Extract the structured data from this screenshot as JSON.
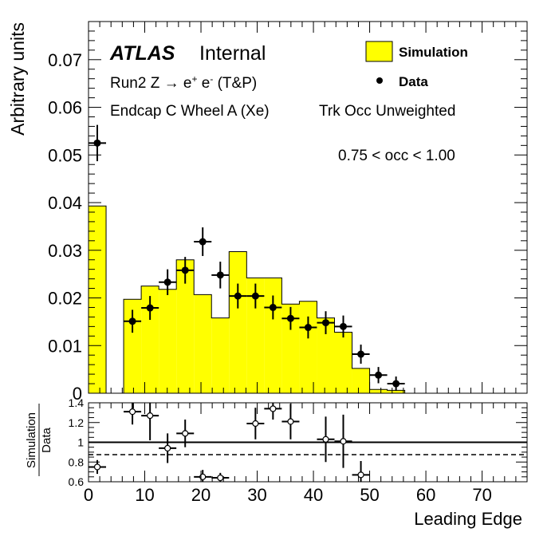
{
  "chart_data": [
    {
      "type": "bar",
      "panel": "main",
      "ylabel": "Arbitrary units",
      "xlim": [
        0,
        78
      ],
      "ylim": [
        0,
        0.078
      ],
      "y_ticks": [
        {
          "v": 0,
          "label": "0"
        },
        {
          "v": 0.01,
          "label": "0.01"
        },
        {
          "v": 0.02,
          "label": "0.02"
        },
        {
          "v": 0.03,
          "label": "0.03"
        },
        {
          "v": 0.04,
          "label": "0.04"
        },
        {
          "v": 0.05,
          "label": "0.05"
        },
        {
          "v": 0.06,
          "label": "0.06"
        },
        {
          "v": 0.07,
          "label": "0.07"
        }
      ],
      "annotations": {
        "atlas": "ATLAS",
        "internal": "Internal",
        "process_prefix": "Run2 Z",
        "process_arrow": "→",
        "process_eplus": "e",
        "process_eplus_sup": "+",
        "process_eminus": "e",
        "process_eminus_sup": "-",
        "process_suffix": "(T&P)",
        "region": "Endcap C Wheel A (Xe)",
        "weighting": "Trk Occ Unweighted",
        "occ_range": "0.75 < occ < 1.00"
      },
      "legend": {
        "placement": "top-right",
        "simulation": "Simulation",
        "data": "Data"
      },
      "colors": {
        "simulation_fill": "#ffff00",
        "simulation_line": "#000000",
        "data": "#000000"
      },
      "simulation_bins": [
        {
          "x0": 0,
          "x1": 3.125,
          "y": 0.0393
        },
        {
          "x0": 3.125,
          "x1": 6.25,
          "y": 0.0
        },
        {
          "x0": 6.25,
          "x1": 9.375,
          "y": 0.0197
        },
        {
          "x0": 9.375,
          "x1": 12.5,
          "y": 0.0225
        },
        {
          "x0": 12.5,
          "x1": 15.625,
          "y": 0.0218
        },
        {
          "x0": 15.625,
          "x1": 18.75,
          "y": 0.028
        },
        {
          "x0": 18.75,
          "x1": 21.875,
          "y": 0.0207
        },
        {
          "x0": 21.875,
          "x1": 25.0,
          "y": 0.0158
        },
        {
          "x0": 25.0,
          "x1": 28.125,
          "y": 0.0297
        },
        {
          "x0": 28.125,
          "x1": 31.25,
          "y": 0.0242
        },
        {
          "x0": 31.25,
          "x1": 34.375,
          "y": 0.0242
        },
        {
          "x0": 34.375,
          "x1": 37.5,
          "y": 0.0187
        },
        {
          "x0": 37.5,
          "x1": 40.625,
          "y": 0.0193
        },
        {
          "x0": 40.625,
          "x1": 43.75,
          "y": 0.0158
        },
        {
          "x0": 43.75,
          "x1": 46.875,
          "y": 0.0128
        },
        {
          "x0": 46.875,
          "x1": 50.0,
          "y": 0.0052
        },
        {
          "x0": 50.0,
          "x1": 53.125,
          "y": 0.0008
        },
        {
          "x0": 53.125,
          "x1": 56.25,
          "y": 0.0006
        }
      ],
      "data_points": [
        {
          "x": 1.56,
          "y": 0.0525,
          "yerr": 0.0028
        },
        {
          "x": 7.81,
          "y": 0.0151,
          "yerr": 0.0014
        },
        {
          "x": 10.94,
          "y": 0.0179,
          "yerr": 0.0015
        },
        {
          "x": 14.06,
          "y": 0.0233,
          "yerr": 0.0017
        },
        {
          "x": 17.19,
          "y": 0.0258,
          "yerr": 0.0018
        },
        {
          "x": 20.31,
          "y": 0.0318,
          "yerr": 0.002
        },
        {
          "x": 23.44,
          "y": 0.0248,
          "yerr": 0.0018
        },
        {
          "x": 26.56,
          "y": 0.0204,
          "yerr": 0.0016
        },
        {
          "x": 29.69,
          "y": 0.0204,
          "yerr": 0.0016
        },
        {
          "x": 32.81,
          "y": 0.018,
          "yerr": 0.0015
        },
        {
          "x": 35.94,
          "y": 0.0157,
          "yerr": 0.0014
        },
        {
          "x": 39.06,
          "y": 0.0138,
          "yerr": 0.0013
        },
        {
          "x": 42.19,
          "y": 0.0148,
          "yerr": 0.0014
        },
        {
          "x": 45.31,
          "y": 0.014,
          "yerr": 0.0013
        },
        {
          "x": 48.44,
          "y": 0.0082,
          "yerr": 0.001
        },
        {
          "x": 51.56,
          "y": 0.0038,
          "yerr": 0.0007
        },
        {
          "x": 54.69,
          "y": 0.002,
          "yerr": 0.0005
        }
      ]
    },
    {
      "type": "scatter",
      "panel": "ratio",
      "ylabel_numerator": "Simulation",
      "ylabel_denominator": "Data",
      "xlabel": "Leading Edge",
      "xlim": [
        0,
        78
      ],
      "ylim": [
        0.6,
        1.4
      ],
      "x_ticks": [
        {
          "v": 0,
          "label": "0"
        },
        {
          "v": 10,
          "label": "10"
        },
        {
          "v": 20,
          "label": "20"
        },
        {
          "v": 30,
          "label": "30"
        },
        {
          "v": 40,
          "label": "40"
        },
        {
          "v": 50,
          "label": "50"
        },
        {
          "v": 60,
          "label": "60"
        },
        {
          "v": 70,
          "label": "70"
        }
      ],
      "y_ticks": [
        {
          "v": 0.6,
          "label": "0.6"
        },
        {
          "v": 0.8,
          "label": "0.8"
        },
        {
          "v": 1.0,
          "label": "1"
        },
        {
          "v": 1.2,
          "label": "1.2"
        },
        {
          "v": 1.4,
          "label": "1.4"
        }
      ],
      "reference_line": 1.0,
      "dashed_line": 0.875,
      "points": [
        {
          "x": 1.56,
          "y": 0.75,
          "yerr": 0.07
        },
        {
          "x": 7.81,
          "y": 1.31,
          "yerr": 0.13
        },
        {
          "x": 10.94,
          "y": 1.27,
          "yerr": 0.25
        },
        {
          "x": 14.06,
          "y": 0.94,
          "yerr": 0.15
        },
        {
          "x": 17.19,
          "y": 1.09,
          "yerr": 0.14
        },
        {
          "x": 20.31,
          "y": 0.65,
          "yerr": 0.07
        },
        {
          "x": 23.44,
          "y": 0.64,
          "yerr": 0.05
        },
        {
          "x": 29.69,
          "y": 1.19,
          "yerr": 0.16
        },
        {
          "x": 32.81,
          "y": 1.34,
          "yerr": 0.11
        },
        {
          "x": 35.94,
          "y": 1.21,
          "yerr": 0.18
        },
        {
          "x": 42.19,
          "y": 1.03,
          "yerr": 0.23
        },
        {
          "x": 45.31,
          "y": 1.01,
          "yerr": 0.27
        },
        {
          "x": 48.44,
          "y": 0.67,
          "yerr": 0.14
        }
      ]
    }
  ]
}
